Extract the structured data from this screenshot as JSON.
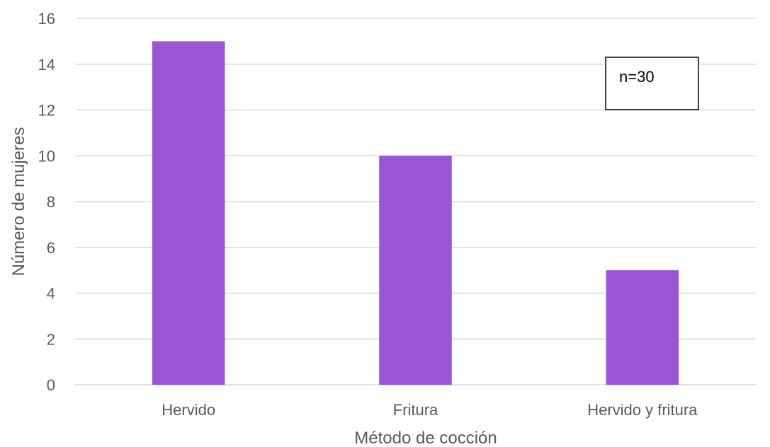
{
  "chart_data": {
    "type": "bar",
    "categories": [
      "Hervido",
      "Fritura",
      "Hervido y fritura"
    ],
    "values": [
      15,
      10,
      5
    ],
    "title": "",
    "xlabel": "Método de cocción",
    "ylabel": "Número de mujeres",
    "ylim": [
      0,
      16
    ],
    "yticks": [
      0,
      2,
      4,
      6,
      8,
      10,
      12,
      14,
      16
    ],
    "grid": true,
    "legend": "none",
    "annotation": "n=30",
    "bar_color": "#9955d4",
    "grid_color": "#d9d9d9",
    "text_color": "#595959"
  }
}
